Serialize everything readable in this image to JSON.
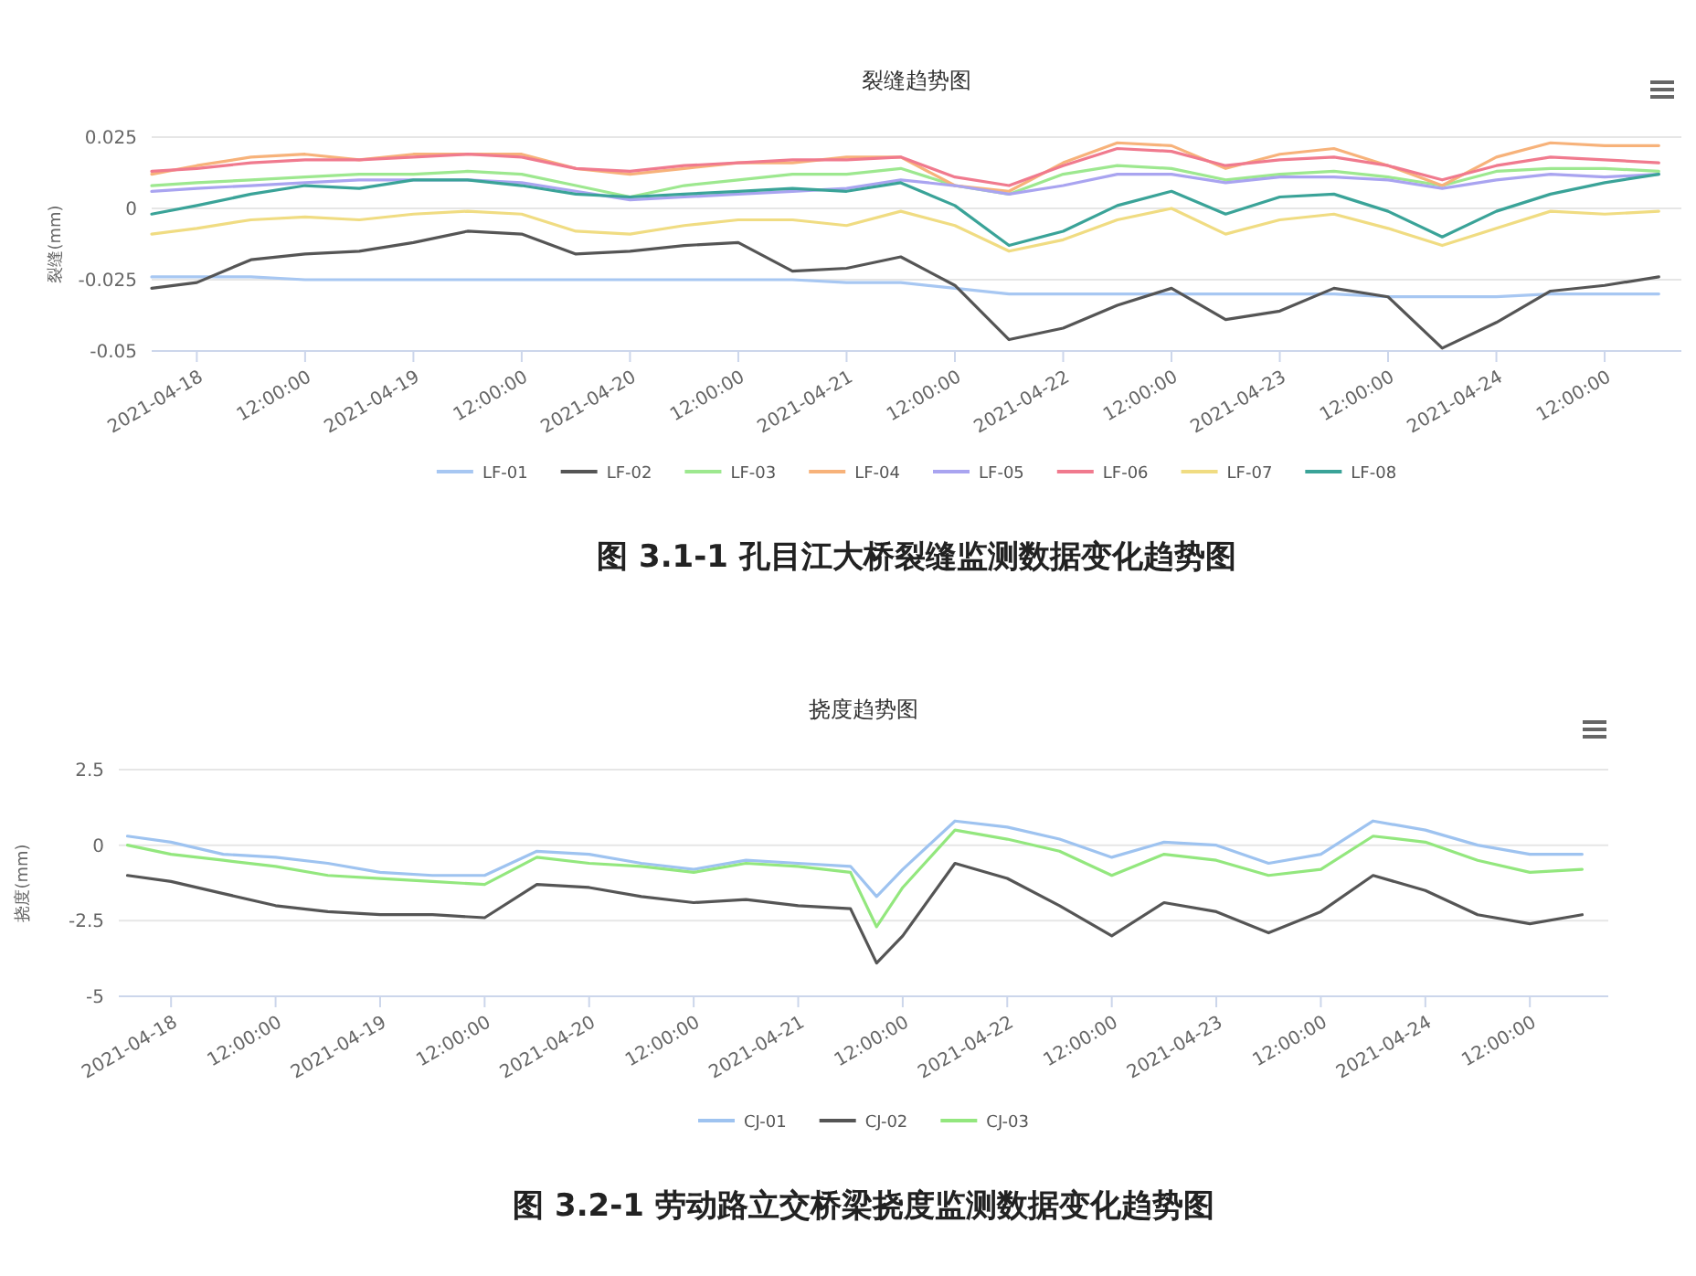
{
  "chart_data": [
    {
      "type": "line",
      "title": "裂缝趋势图",
      "ylabel": "裂缝(mm)",
      "grid": "y",
      "legend": "bottom",
      "xlim": [
        "2021-04-17T19:00",
        "2021-04-24T20:30"
      ],
      "ylim": [
        -0.05,
        0.025
      ],
      "yticks": [
        -0.05,
        -0.025,
        0,
        0.025
      ],
      "xticks": [
        {
          "value": "2021-04-18",
          "label": "2021-04-18"
        },
        {
          "value": "2021-04-18T12:00",
          "label": "12:00:00"
        },
        {
          "value": "2021-04-19",
          "label": "2021-04-19"
        },
        {
          "value": "2021-04-19T12:00",
          "label": "12:00:00"
        },
        {
          "value": "2021-04-20",
          "label": "2021-04-20"
        },
        {
          "value": "2021-04-20T12:00",
          "label": "12:00:00"
        },
        {
          "value": "2021-04-21",
          "label": "2021-04-21"
        },
        {
          "value": "2021-04-21T12:00",
          "label": "12:00:00"
        },
        {
          "value": "2021-04-22",
          "label": "2021-04-22"
        },
        {
          "value": "2021-04-22T12:00",
          "label": "12:00:00"
        },
        {
          "value": "2021-04-23",
          "label": "2021-04-23"
        },
        {
          "value": "2021-04-23T12:00",
          "label": "12:00:00"
        },
        {
          "value": "2021-04-24",
          "label": "2021-04-24"
        },
        {
          "value": "2021-04-24T12:00",
          "label": "12:00:00"
        }
      ],
      "x": [
        "2021-04-17T19:00",
        "2021-04-18T00:00",
        "2021-04-18T06:00",
        "2021-04-18T12:00",
        "2021-04-18T18:00",
        "2021-04-19T00:00",
        "2021-04-19T06:00",
        "2021-04-19T12:00",
        "2021-04-19T18:00",
        "2021-04-20T00:00",
        "2021-04-20T06:00",
        "2021-04-20T12:00",
        "2021-04-20T18:00",
        "2021-04-21T00:00",
        "2021-04-21T06:00",
        "2021-04-21T12:00",
        "2021-04-21T18:00",
        "2021-04-22T00:00",
        "2021-04-22T06:00",
        "2021-04-22T12:00",
        "2021-04-22T18:00",
        "2021-04-23T00:00",
        "2021-04-23T06:00",
        "2021-04-23T12:00",
        "2021-04-23T18:00",
        "2021-04-24T00:00",
        "2021-04-24T06:00",
        "2021-04-24T12:00",
        "2021-04-24T18:00"
      ],
      "series": [
        {
          "name": "LF-01",
          "color": "#a7c7f2",
          "values": [
            -0.024,
            -0.024,
            -0.024,
            -0.025,
            -0.025,
            -0.025,
            -0.025,
            -0.025,
            -0.025,
            -0.025,
            -0.025,
            -0.025,
            -0.025,
            -0.026,
            -0.026,
            -0.028,
            -0.03,
            -0.03,
            -0.03,
            -0.03,
            -0.03,
            -0.03,
            -0.03,
            -0.031,
            -0.031,
            -0.031,
            -0.03,
            -0.03,
            -0.03
          ]
        },
        {
          "name": "LF-02",
          "color": "#555555",
          "values": [
            -0.028,
            -0.026,
            -0.018,
            -0.016,
            -0.015,
            -0.012,
            -0.008,
            -0.009,
            -0.016,
            -0.015,
            -0.013,
            -0.012,
            -0.022,
            -0.021,
            -0.017,
            -0.027,
            -0.046,
            -0.042,
            -0.034,
            -0.028,
            -0.039,
            -0.036,
            -0.028,
            -0.031,
            -0.049,
            -0.04,
            -0.029,
            -0.027,
            -0.024
          ]
        },
        {
          "name": "LF-03",
          "color": "#9de88f",
          "values": [
            0.008,
            0.009,
            0.01,
            0.011,
            0.012,
            0.012,
            0.013,
            0.012,
            0.008,
            0.004,
            0.008,
            0.01,
            0.012,
            0.012,
            0.014,
            0.008,
            0.005,
            0.012,
            0.015,
            0.014,
            0.01,
            0.012,
            0.013,
            0.011,
            0.008,
            0.013,
            0.014,
            0.014,
            0.013
          ]
        },
        {
          "name": "LF-04",
          "color": "#f7b27a",
          "values": [
            0.012,
            0.015,
            0.018,
            0.019,
            0.017,
            0.019,
            0.019,
            0.019,
            0.014,
            0.012,
            0.014,
            0.016,
            0.016,
            0.018,
            0.018,
            0.008,
            0.006,
            0.016,
            0.023,
            0.022,
            0.014,
            0.019,
            0.021,
            0.015,
            0.008,
            0.018,
            0.023,
            0.022,
            0.022
          ]
        },
        {
          "name": "LF-05",
          "color": "#a9a4f0",
          "values": [
            0.006,
            0.007,
            0.008,
            0.009,
            0.01,
            0.01,
            0.01,
            0.009,
            0.006,
            0.003,
            0.004,
            0.005,
            0.006,
            0.007,
            0.01,
            0.008,
            0.005,
            0.008,
            0.012,
            0.012,
            0.009,
            0.011,
            0.011,
            0.01,
            0.007,
            0.01,
            0.012,
            0.011,
            0.012
          ]
        },
        {
          "name": "LF-06",
          "color": "#f07a8e",
          "values": [
            0.013,
            0.014,
            0.016,
            0.017,
            0.017,
            0.018,
            0.019,
            0.018,
            0.014,
            0.013,
            0.015,
            0.016,
            0.017,
            0.017,
            0.018,
            0.011,
            0.008,
            0.015,
            0.021,
            0.02,
            0.015,
            0.017,
            0.018,
            0.015,
            0.01,
            0.015,
            0.018,
            0.017,
            0.016
          ]
        },
        {
          "name": "LF-07",
          "color": "#f0dc82",
          "values": [
            -0.009,
            -0.007,
            -0.004,
            -0.003,
            -0.004,
            -0.002,
            -0.001,
            -0.002,
            -0.008,
            -0.009,
            -0.006,
            -0.004,
            -0.004,
            -0.006,
            -0.001,
            -0.006,
            -0.015,
            -0.011,
            -0.004,
            0.0,
            -0.009,
            -0.004,
            -0.002,
            -0.007,
            -0.013,
            -0.007,
            -0.001,
            -0.002,
            -0.001
          ]
        },
        {
          "name": "LF-08",
          "color": "#3aa398",
          "values": [
            -0.002,
            0.001,
            0.005,
            0.008,
            0.007,
            0.01,
            0.01,
            0.008,
            0.005,
            0.004,
            0.005,
            0.006,
            0.007,
            0.006,
            0.009,
            0.001,
            -0.013,
            -0.008,
            0.001,
            0.006,
            -0.002,
            0.004,
            0.005,
            -0.001,
            -0.01,
            -0.001,
            0.005,
            0.009,
            0.012
          ]
        }
      ],
      "annotations": [
        "图 3.1-1 孔目江大桥裂缝监测数据变化趋势图"
      ]
    },
    {
      "type": "line",
      "title": "挠度趋势图",
      "ylabel": "挠度(mm)",
      "grid": "y",
      "legend": "bottom",
      "xlim": [
        "2021-04-17T18:00",
        "2021-04-24T21:00"
      ],
      "ylim": [
        -5,
        2.5
      ],
      "yticks": [
        -5,
        -2.5,
        0,
        2.5
      ],
      "xticks": [
        {
          "value": "2021-04-18",
          "label": "2021-04-18"
        },
        {
          "value": "2021-04-18T12:00",
          "label": "12:00:00"
        },
        {
          "value": "2021-04-19",
          "label": "2021-04-19"
        },
        {
          "value": "2021-04-19T12:00",
          "label": "12:00:00"
        },
        {
          "value": "2021-04-20",
          "label": "2021-04-20"
        },
        {
          "value": "2021-04-20T12:00",
          "label": "12:00:00"
        },
        {
          "value": "2021-04-21",
          "label": "2021-04-21"
        },
        {
          "value": "2021-04-21T12:00",
          "label": "12:00:00"
        },
        {
          "value": "2021-04-22",
          "label": "2021-04-22"
        },
        {
          "value": "2021-04-22T12:00",
          "label": "12:00:00"
        },
        {
          "value": "2021-04-23",
          "label": "2021-04-23"
        },
        {
          "value": "2021-04-23T12:00",
          "label": "12:00:00"
        },
        {
          "value": "2021-04-24",
          "label": "2021-04-24"
        },
        {
          "value": "2021-04-24T12:00",
          "label": "12:00:00"
        }
      ],
      "x": [
        "2021-04-17T19:00",
        "2021-04-18T00:00",
        "2021-04-18T06:00",
        "2021-04-18T12:00",
        "2021-04-18T18:00",
        "2021-04-19T00:00",
        "2021-04-19T06:00",
        "2021-04-19T12:00",
        "2021-04-19T18:00",
        "2021-04-20T00:00",
        "2021-04-20T06:00",
        "2021-04-20T12:00",
        "2021-04-20T18:00",
        "2021-04-21T00:00",
        "2021-04-21T06:00",
        "2021-04-21T09:00",
        "2021-04-21T12:00",
        "2021-04-21T18:00",
        "2021-04-22T00:00",
        "2021-04-22T06:00",
        "2021-04-22T12:00",
        "2021-04-22T18:00",
        "2021-04-23T00:00",
        "2021-04-23T06:00",
        "2021-04-23T12:00",
        "2021-04-23T18:00",
        "2021-04-24T00:00",
        "2021-04-24T06:00",
        "2021-04-24T12:00",
        "2021-04-24T18:00"
      ],
      "series": [
        {
          "name": "CJ-01",
          "color": "#9ec3f0",
          "values": [
            0.3,
            0.1,
            -0.3,
            -0.4,
            -0.6,
            -0.9,
            -1.0,
            -1.0,
            -0.2,
            -0.3,
            -0.6,
            -0.8,
            -0.5,
            -0.6,
            -0.7,
            -1.7,
            -0.8,
            0.8,
            0.6,
            0.2,
            -0.4,
            0.1,
            0.0,
            -0.6,
            -0.3,
            0.8,
            0.5,
            0.0,
            -0.3,
            -0.3
          ]
        },
        {
          "name": "CJ-02",
          "color": "#555555",
          "values": [
            -1.0,
            -1.2,
            -1.6,
            -2.0,
            -2.2,
            -2.3,
            -2.3,
            -2.4,
            -1.3,
            -1.4,
            -1.7,
            -1.9,
            -1.8,
            -2.0,
            -2.1,
            -3.9,
            -3.0,
            -0.6,
            -1.1,
            -2.0,
            -3.0,
            -1.9,
            -2.2,
            -2.9,
            -2.2,
            -1.0,
            -1.5,
            -2.3,
            -2.6,
            -2.3
          ]
        },
        {
          "name": "CJ-03",
          "color": "#93e77e",
          "values": [
            0.0,
            -0.3,
            -0.5,
            -0.7,
            -1.0,
            -1.1,
            -1.2,
            -1.3,
            -0.4,
            -0.6,
            -0.7,
            -0.9,
            -0.6,
            -0.7,
            -0.9,
            -2.7,
            -1.4,
            0.5,
            0.2,
            -0.2,
            -1.0,
            -0.3,
            -0.5,
            -1.0,
            -0.8,
            0.3,
            0.1,
            -0.5,
            -0.9,
            -0.8
          ]
        }
      ],
      "annotations": [
        "图 3.2-1 劳动路立交桥梁挠度监测数据变化趋势图"
      ]
    }
  ]
}
